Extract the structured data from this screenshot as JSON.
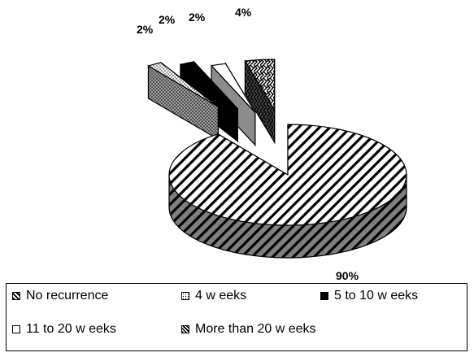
{
  "chart_data": {
    "type": "pie",
    "exploded_3d": true,
    "slices": [
      {
        "label": "No recurrence",
        "value": 90,
        "value_label": "90%",
        "pattern": "diagonal-stripes"
      },
      {
        "label": "4 w eeks",
        "value": 2,
        "value_label": "2%",
        "pattern": "dotted"
      },
      {
        "label": "5 to 10 w eeks",
        "value": 2,
        "value_label": "2%",
        "pattern": "solid-black"
      },
      {
        "label": "11 to 20 w eeks",
        "value": 2,
        "value_label": "2%",
        "pattern": "white"
      },
      {
        "label": "More than 20 w eeks",
        "value": 4,
        "value_label": "4%",
        "pattern": "dark-weave"
      }
    ],
    "legend_position": "bottom",
    "legend_columns": 3
  }
}
